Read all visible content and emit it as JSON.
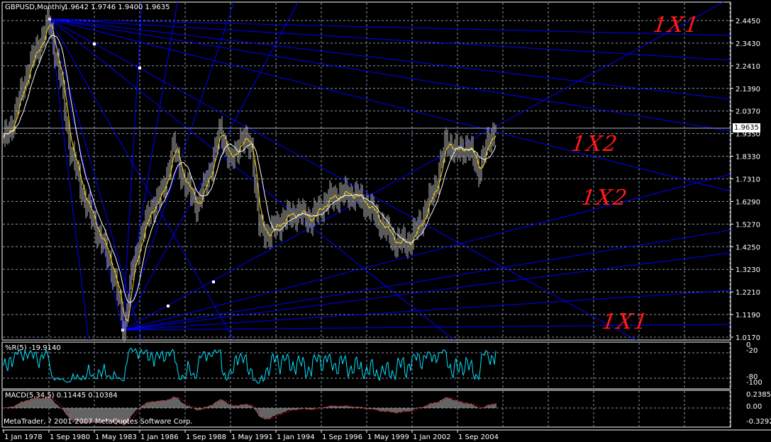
{
  "window": {
    "symbol": "GBPUSD,Monthly",
    "ohlc": "1.9642 1.9746 1.9400 1.9635"
  },
  "current_price": "1.9635",
  "annotations": [
    "1X1",
    "1X2",
    "1X2",
    "1X1"
  ],
  "indicators": {
    "wpr": {
      "label": "%R(5) -19.9140",
      "axis": [
        "0",
        "-20",
        "-80",
        "-100"
      ]
    },
    "macd": {
      "label": "MACD(5,34,5) 0.11445 0.10384",
      "axis": [
        "0.2385",
        "0.00",
        "-0.32927"
      ]
    }
  },
  "copyright": "MetaTrader, ? 2001-2007 MetaQuotes Software Corp.",
  "colors": {
    "background": "#000000",
    "grid": "#8a96a8",
    "gann_lines": "#0000ff",
    "bars": "#b4b4b4",
    "ma_fast": "#ffd700",
    "ma_slow": "#ffffff",
    "wpr": "#00e5ff",
    "macd_signal": "#ff0000",
    "annotation": "#ff1a1a"
  },
  "chart_data": {
    "type": "bar",
    "title": "GBPUSD,Monthly",
    "price_ticks": [
      "2.4450",
      "2.3430",
      "2.2410",
      "2.1390",
      "2.0370",
      "1.9350",
      "1.8330",
      "1.7310",
      "1.6290",
      "1.5270",
      "1.4250",
      "1.3230",
      "1.2210",
      "1.1190",
      "1.0170"
    ],
    "time_ticks": [
      "1 Jan 1978",
      "1 Sep 1980",
      "1 May 1983",
      "1 Jan 1986",
      "1 Sep 1988",
      "1 May 1991",
      "1 Jan 1994",
      "1 Sep 1996",
      "1 May 1999",
      "1 Jan 2002",
      "1 Sep 2004"
    ],
    "grid": true,
    "approx_closes": [
      [
        "1978-01",
        1.9
      ],
      [
        "1978-08",
        1.995
      ],
      [
        "1979-06",
        2.22
      ],
      [
        "1980-09",
        2.44
      ],
      [
        "1981-05",
        2.19
      ],
      [
        "1981-12",
        1.87
      ],
      [
        "1982-10",
        1.64
      ],
      [
        "1983-08",
        1.48
      ],
      [
        "1984-04",
        1.36
      ],
      [
        "1984-09",
        1.23
      ],
      [
        "1985-02",
        1.05
      ],
      [
        "1985-07",
        1.29
      ],
      [
        "1986-02",
        1.48
      ],
      [
        "1986-10",
        1.61
      ],
      [
        "1987-05",
        1.67
      ],
      [
        "1988-01",
        1.88
      ],
      [
        "1988-08",
        1.72
      ],
      [
        "1989-06",
        1.61
      ],
      [
        "1990-04",
        1.8
      ],
      [
        "1990-10",
        1.96
      ],
      [
        "1991-05",
        1.8
      ],
      [
        "1991-12",
        1.91
      ],
      [
        "1992-08",
        1.88
      ],
      [
        "1993-01",
        1.52
      ],
      [
        "1993-08",
        1.48
      ],
      [
        "1994-06",
        1.55
      ],
      [
        "1995-04",
        1.58
      ],
      [
        "1996-02",
        1.55
      ],
      [
        "1996-12",
        1.63
      ],
      [
        "1997-10",
        1.66
      ],
      [
        "1998-08",
        1.66
      ],
      [
        "1999-06",
        1.61
      ],
      [
        "2000-04",
        1.52
      ],
      [
        "2001-02",
        1.44
      ],
      [
        "2001-12",
        1.45
      ],
      [
        "2002-10",
        1.58
      ],
      [
        "2003-06",
        1.71
      ],
      [
        "2004-01",
        1.9
      ],
      [
        "2004-09",
        1.85
      ],
      [
        "2005-04",
        1.88
      ],
      [
        "2005-12",
        1.77
      ],
      [
        "2006-07",
        1.9
      ],
      [
        "2006-12",
        1.9635
      ]
    ],
    "last_bar": {
      "open": 1.9642,
      "high": 1.9746,
      "low": 1.94,
      "close": 1.9635
    }
  }
}
